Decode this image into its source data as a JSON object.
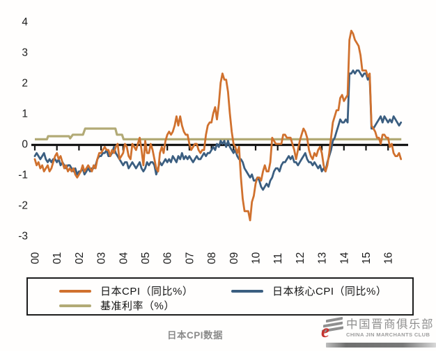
{
  "chart_data": {
    "type": "line",
    "title": "日本CPI数据",
    "grid": false,
    "legend_position": "bottom-boxed",
    "x_axis": {
      "start_year": 2000,
      "interval_months": 1,
      "tick_labels": [
        "00",
        "01",
        "02",
        "03",
        "04",
        "05",
        "06",
        "07",
        "08",
        "09",
        "10",
        "11",
        "12",
        "13",
        "14",
        "15",
        "16"
      ]
    },
    "y_axis": {
      "min": -3,
      "max": 4,
      "ticks": [
        4,
        3,
        2,
        1,
        0,
        -1,
        -2,
        -3
      ]
    },
    "series": [
      {
        "name": "日本CPI（同比%）",
        "color": "#d0712e",
        "kind": "monthly",
        "values": [
          -0.5,
          -0.7,
          -0.6,
          -0.8,
          -0.7,
          -0.9,
          -0.8,
          -0.7,
          -0.9,
          -0.8,
          -0.6,
          -0.4,
          -0.3,
          -0.5,
          -0.4,
          -0.6,
          -0.8,
          -0.7,
          -0.9,
          -0.8,
          -0.9,
          -0.8,
          -1.0,
          -1.1,
          -1.0,
          -0.9,
          -0.7,
          -0.9,
          -0.8,
          -0.7,
          -0.8,
          -0.9,
          -0.7,
          -0.8,
          -0.5,
          -0.3,
          -0.3,
          -0.2,
          -0.1,
          -0.2,
          -0.2,
          -0.4,
          -0.2,
          -0.3,
          -0.1,
          0.0,
          -0.5,
          -0.4,
          -0.3,
          0.0,
          -0.1,
          -0.4,
          -0.5,
          0.0,
          -0.1,
          -0.2,
          0.0,
          0.2,
          -0.2,
          -0.7,
          0.1,
          -0.3,
          -0.3,
          0.0,
          -0.2,
          -0.5,
          -0.8,
          -0.9,
          -0.3,
          -0.1,
          -0.3,
          0.1,
          0.3,
          0.4,
          0.3,
          0.4,
          0.6,
          0.9,
          0.6,
          0.9,
          0.6,
          0.4,
          0.3,
          0.3,
          0.0,
          -0.2,
          -0.1,
          0.0,
          0.0,
          -0.2,
          -0.3,
          -0.2,
          -0.2,
          0.3,
          0.6,
          0.7,
          0.7,
          1.0,
          1.2,
          0.8,
          1.3,
          2.0,
          2.3,
          2.1,
          2.1,
          1.7,
          1.0,
          0.4,
          0.0,
          -0.1,
          -0.3,
          -0.1,
          -1.1,
          -1.8,
          -2.2,
          -2.2,
          -2.2,
          -2.5,
          -1.9,
          -1.7,
          -1.3,
          -1.1,
          -1.1,
          -1.2,
          -0.9,
          -0.7,
          -0.9,
          -0.9,
          -0.6,
          0.2,
          0.1,
          0.0,
          0.0,
          0.0,
          0.0,
          0.3,
          0.3,
          0.2,
          0.2,
          0.2,
          0.0,
          -0.2,
          -0.5,
          -0.2,
          0.1,
          0.3,
          0.5,
          0.4,
          0.2,
          -0.2,
          -0.4,
          -0.5,
          -0.3,
          -0.4,
          -0.2,
          -0.1,
          -0.3,
          -0.7,
          -0.9,
          -0.7,
          -0.3,
          0.2,
          0.7,
          0.9,
          1.1,
          1.1,
          1.5,
          1.6,
          1.4,
          1.5,
          1.6,
          3.4,
          3.7,
          3.6,
          3.4,
          3.3,
          3.2,
          2.9,
          2.4,
          2.4,
          2.4,
          2.2,
          2.3,
          0.6,
          0.5,
          0.4,
          0.2,
          0.2,
          0.0,
          0.3,
          0.3,
          0.2,
          0.2,
          -0.1,
          0.0,
          -0.3,
          -0.4,
          -0.4,
          -0.3,
          -0.5
        ]
      },
      {
        "name": "日本核心CPI（同比%）",
        "color": "#3b5e80",
        "kind": "monthly",
        "values": [
          -0.4,
          -0.3,
          -0.4,
          -0.5,
          -0.4,
          -0.3,
          -0.5,
          -0.6,
          -0.5,
          -0.6,
          -0.5,
          -0.5,
          -0.6,
          -0.5,
          -0.7,
          -0.6,
          -0.7,
          -0.8,
          -0.7,
          -0.7,
          -0.8,
          -0.9,
          -0.8,
          -1.0,
          -0.9,
          -0.9,
          -0.8,
          -1.0,
          -0.9,
          -0.8,
          -0.9,
          -0.8,
          -0.8,
          -0.7,
          -0.5,
          -0.4,
          -0.4,
          -0.3,
          -0.3,
          -0.2,
          -0.4,
          -0.4,
          -0.3,
          -0.1,
          -0.3,
          -0.4,
          -0.5,
          -0.6,
          -0.7,
          -0.6,
          -0.6,
          -0.8,
          -0.7,
          -0.6,
          -0.7,
          -0.8,
          -0.7,
          -0.6,
          -0.8,
          -0.9,
          -0.8,
          -0.6,
          -0.7,
          -0.6,
          -0.6,
          -0.7,
          -1.0,
          -0.8,
          -0.6,
          -0.7,
          -0.6,
          -0.5,
          -0.6,
          -0.5,
          -0.6,
          -0.4,
          -0.5,
          -0.6,
          -0.4,
          -0.5,
          -0.3,
          -0.5,
          -0.4,
          -0.5,
          -0.4,
          -0.5,
          -0.6,
          -0.5,
          -0.4,
          -0.5,
          -0.5,
          -0.4,
          -0.3,
          -0.4,
          -0.3,
          -0.3,
          -0.2,
          -0.1,
          -0.2,
          0.0,
          -0.1,
          0.1,
          0.0,
          0.1,
          -0.1,
          0.1,
          -0.1,
          -0.2,
          -0.3,
          -0.2,
          -0.4,
          -0.5,
          -0.5,
          -0.6,
          -0.8,
          -0.9,
          -1.0,
          -1.1,
          -1.0,
          -1.2,
          -1.2,
          -1.1,
          -1.2,
          -1.4,
          -1.5,
          -1.4,
          -1.3,
          -1.4,
          -1.2,
          -1.1,
          -0.9,
          -0.8,
          -0.8,
          -0.9,
          -0.7,
          -0.6,
          -0.6,
          -0.5,
          -0.4,
          -0.5,
          -0.4,
          -0.6,
          -0.6,
          -0.7,
          -0.6,
          -0.5,
          -0.4,
          -0.3,
          -0.5,
          -0.6,
          -0.6,
          -0.7,
          -0.6,
          -0.7,
          -0.8,
          -0.7,
          -0.9,
          -0.8,
          -0.9,
          -0.6,
          -0.4,
          -0.2,
          0.1,
          0.2,
          0.4,
          0.6,
          0.8,
          0.7,
          0.7,
          0.8,
          0.7,
          2.3,
          2.3,
          2.4,
          2.3,
          2.4,
          2.4,
          2.3,
          2.2,
          2.3,
          2.3,
          2.1,
          2.2,
          0.5,
          0.5,
          0.6,
          0.7,
          0.8,
          0.9,
          0.7,
          0.9,
          0.8,
          0.7,
          0.8,
          0.7,
          0.9,
          0.8,
          0.7,
          0.6,
          0.7
        ]
      },
      {
        "name": "基准利率（%）",
        "color": "#b2aa76",
        "kind": "step",
        "points": [
          [
            0,
            0.15
          ],
          [
            0.55,
            0.15
          ],
          [
            0.6,
            0.25
          ],
          [
            1.55,
            0.25
          ],
          [
            1.6,
            0.18
          ],
          [
            1.72,
            0.3
          ],
          [
            2.18,
            0.3
          ],
          [
            2.28,
            0.5
          ],
          [
            3.65,
            0.5
          ],
          [
            3.72,
            0.3
          ],
          [
            3.95,
            0.3
          ],
          [
            4.02,
            0.15
          ],
          [
            16.6,
            0.15
          ]
        ]
      }
    ]
  },
  "watermark": {
    "cn": "中国晋商俱乐部",
    "en": "CHINA JIN MARCHANTS CLUB",
    "logo_glyph": "e",
    "accent_color": "#c63430"
  }
}
